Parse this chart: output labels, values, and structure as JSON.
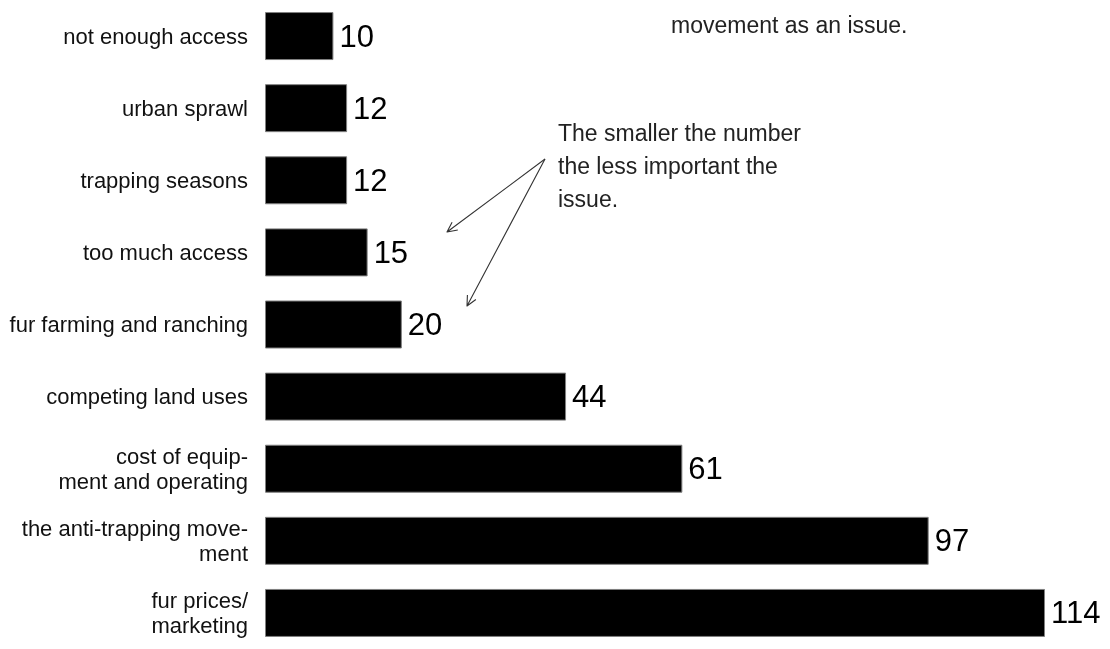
{
  "chart_data": {
    "type": "bar",
    "orientation": "horizontal",
    "categories": [
      "not enough access",
      "urban sprawl",
      "trapping seasons",
      "too much access",
      "fur farming and ranching",
      "competing land uses",
      "cost of equip-\nment and operating",
      "the anti-trapping move-\nment",
      "fur prices/\nmarketing"
    ],
    "values": [
      10,
      12,
      12,
      15,
      20,
      44,
      61,
      97,
      114
    ],
    "color": "#000000",
    "data_labels": true,
    "annotations": [
      "The smaller the number the less important the issue.",
      "movement as an issue."
    ]
  }
}
